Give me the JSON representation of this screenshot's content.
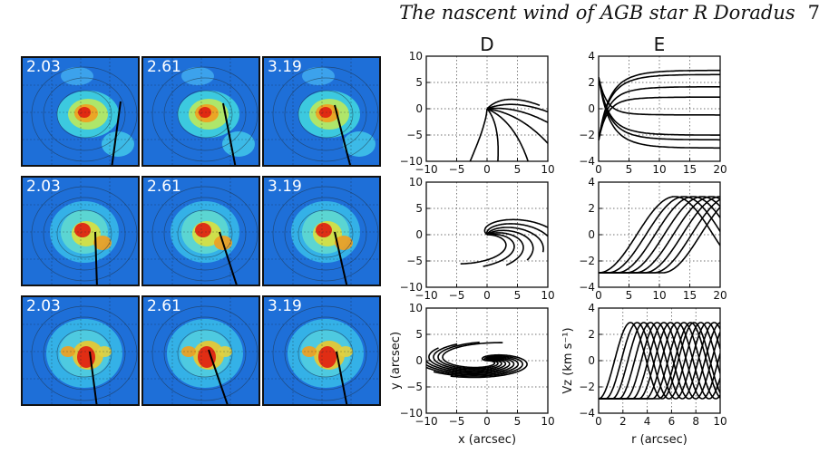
{
  "header": {
    "title": "The nascent wind of AGB star R Doradus",
    "page_number": "7"
  },
  "map_panels": {
    "rows": [
      [
        "2.03",
        "2.61",
        "3.19"
      ],
      [
        "2.03",
        "2.61",
        "3.19"
      ],
      [
        "2.03",
        "2.61",
        "3.19"
      ]
    ]
  },
  "colors": {
    "map_background": "#1e6fd8",
    "map_peak": "#e02010",
    "frame": "#111111"
  },
  "chart_data": [
    {
      "panel": "D1",
      "type": "line",
      "title": "D",
      "xlim": [
        -10,
        10
      ],
      "ylim": [
        -10,
        10
      ],
      "xticks": [
        "−10",
        "−5",
        "0",
        "5",
        "10"
      ],
      "yticks": [
        "10",
        "5",
        "0",
        "−5",
        "−10"
      ],
      "grid": true
    },
    {
      "panel": "E1",
      "type": "line",
      "title": "E",
      "xlim": [
        0,
        20
      ],
      "ylim": [
        -4,
        4
      ],
      "xticks": [
        "0",
        "5",
        "10",
        "15",
        "20"
      ],
      "yticks": [
        "4",
        "2",
        "0",
        "−2",
        "−4"
      ],
      "grid": true
    },
    {
      "panel": "D2",
      "type": "line",
      "xlim": [
        -10,
        10
      ],
      "ylim": [
        -10,
        10
      ],
      "xticks": [
        "−10",
        "−5",
        "0",
        "5",
        "10"
      ],
      "yticks": [
        "10",
        "5",
        "0",
        "−5",
        "−10"
      ],
      "grid": true
    },
    {
      "panel": "E2",
      "type": "line",
      "xlim": [
        0,
        20
      ],
      "ylim": [
        -4,
        4
      ],
      "xticks": [
        "0",
        "5",
        "10",
        "15",
        "20"
      ],
      "yticks": [
        "4",
        "2",
        "0",
        "−2",
        "−4"
      ],
      "grid": true
    },
    {
      "panel": "D3",
      "type": "line",
      "xlim": [
        -10,
        10
      ],
      "ylim": [
        -10,
        10
      ],
      "xticks": [
        "−10",
        "−5",
        "0",
        "5",
        "10"
      ],
      "yticks": [
        "10",
        "5",
        "0",
        "−5",
        "−10"
      ],
      "xlabel": "x (arcsec)",
      "ylabel": "y (arcsec)",
      "grid": true
    },
    {
      "panel": "E3",
      "type": "line",
      "xlim": [
        0,
        10
      ],
      "ylim": [
        -4,
        4
      ],
      "xticks": [
        "0",
        "2",
        "4",
        "6",
        "8",
        "10"
      ],
      "yticks": [
        "4",
        "2",
        "0",
        "−2",
        "−4"
      ],
      "xlabel": "r (arcsec)",
      "ylabel": "Vz (km s⁻¹)",
      "grid": true
    }
  ]
}
